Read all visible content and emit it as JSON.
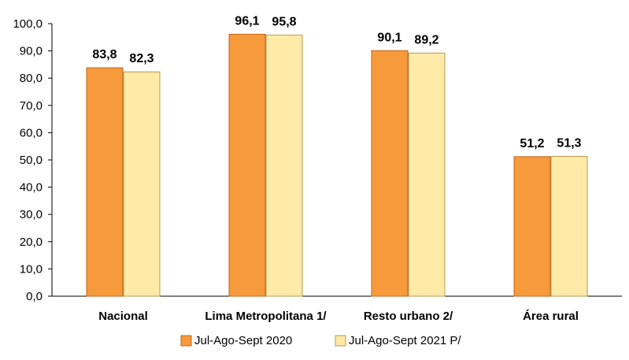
{
  "chart_data": {
    "type": "bar",
    "title": "",
    "xlabel": "",
    "ylabel": "",
    "categories": [
      "Nacional",
      "Lima Metropolitana 1/",
      "Resto urbano 2/",
      "Área rural"
    ],
    "series": [
      {
        "name": "Jul-Ago-Sept 2020",
        "values": [
          83.8,
          96.1,
          90.1,
          51.2
        ],
        "labels": [
          "83,8",
          "96,1",
          "90,1",
          "51,2"
        ],
        "color": "#F79A3C",
        "border": "#C0661E"
      },
      {
        "name": "Jul-Ago-Sept 2021 P/",
        "values": [
          82.3,
          95.8,
          89.2,
          51.3
        ],
        "labels": [
          "82,3",
          "95,8",
          "89,2",
          "51,3"
        ],
        "color": "#FFEAA8",
        "border": "#B89A50"
      }
    ],
    "ylim": [
      0,
      100
    ],
    "yticks": [
      0,
      10,
      20,
      30,
      40,
      50,
      60,
      70,
      80,
      90,
      100
    ],
    "ytick_labels": [
      "0,0",
      "10,0",
      "20,0",
      "30,0",
      "40,0",
      "50,0",
      "60,0",
      "70,0",
      "80,0",
      "90,0",
      "100,0"
    ],
    "grid": false,
    "legend_position": "bottom-center"
  }
}
